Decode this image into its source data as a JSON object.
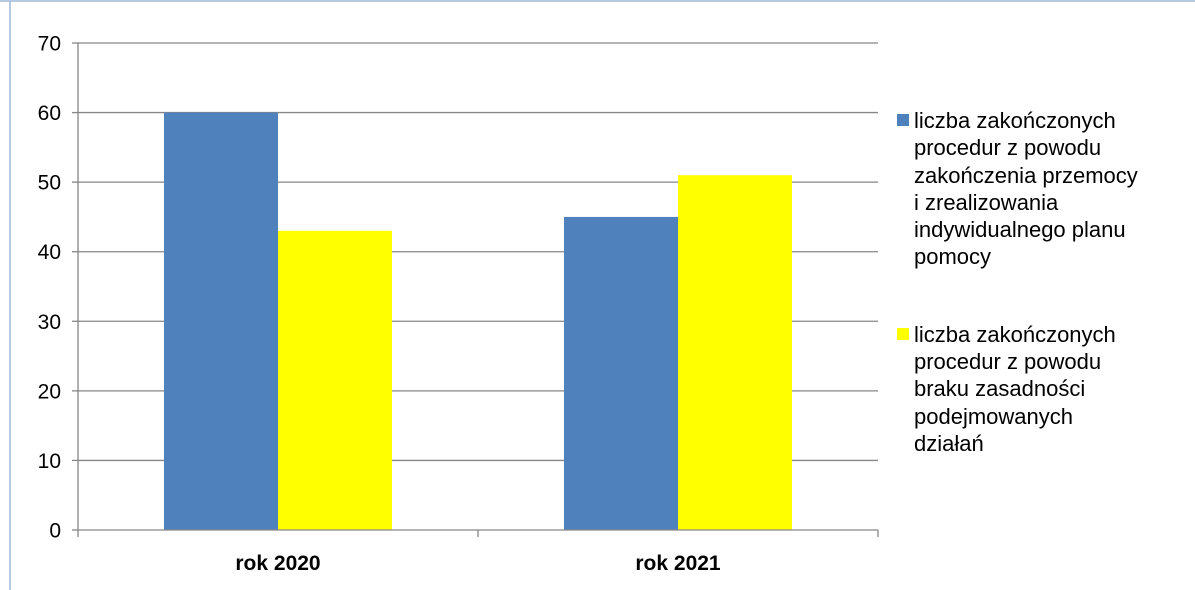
{
  "chart_data": {
    "type": "bar",
    "categories": [
      "rok 2020",
      "rok 2021"
    ],
    "series": [
      {
        "name": "liczba zakończonych procedur z powodu zakończenia przemocy i zrealizowania indywidualnego planu pomocy",
        "values": [
          60,
          45
        ],
        "color": "#4f81bd"
      },
      {
        "name": "liczba zakończonych procedur z powodu braku zasadności podejmowanych działań",
        "values": [
          43,
          51
        ],
        "color": "#ffff00"
      }
    ],
    "ylim": [
      0,
      70
    ],
    "yticks": [
      0,
      10,
      20,
      30,
      40,
      50,
      60,
      70
    ],
    "grid": true,
    "legend_position": "right"
  },
  "legend": {
    "items": [
      {
        "lines": [
          "liczba zakończonych",
          "procedur z powodu",
          "zakończenia przemocy",
          "i zrealizowania",
          "indywidualnego planu",
          "pomocy"
        ],
        "color": "#4f81bd"
      },
      {
        "lines": [
          "liczba zakończonych",
          "procedur z powodu",
          "braku zasadności",
          "podejmowanych",
          "działań"
        ],
        "color": "#ffff00"
      }
    ]
  }
}
